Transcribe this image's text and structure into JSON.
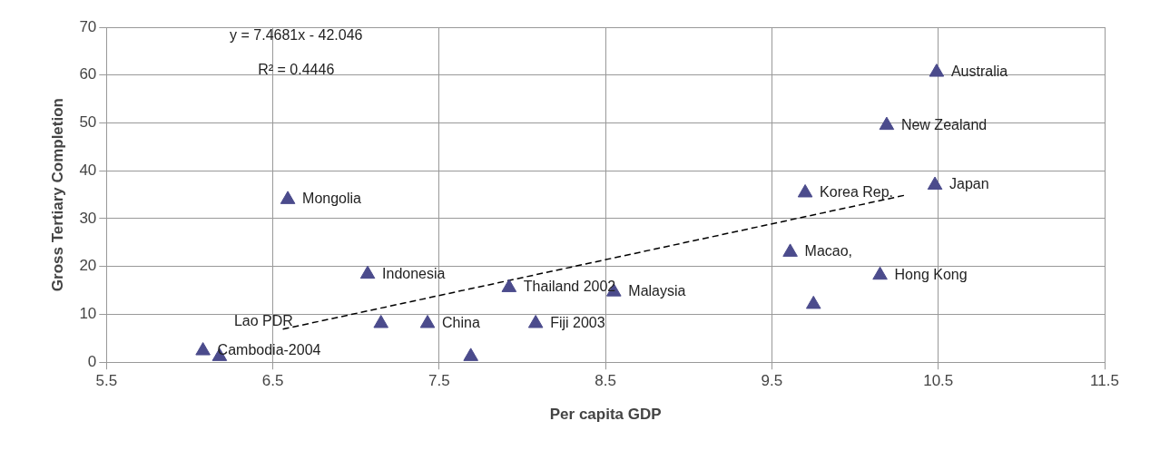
{
  "chart_data": {
    "type": "scatter",
    "xlabel": "Per capita GDP",
    "ylabel": "Gross Tertiary Completion",
    "xlim": [
      5.5,
      11.5
    ],
    "xticks": [
      5.5,
      6.5,
      7.5,
      8.5,
      9.5,
      10.5,
      11.5
    ],
    "ylim": [
      0,
      70
    ],
    "yticks": [
      0,
      10,
      20,
      30,
      40,
      50,
      60,
      70
    ],
    "grid": true,
    "legend": false,
    "marker": "triangle",
    "series": [
      {
        "color": "#4b4b8c",
        "x": [
          6.08,
          6.18,
          6.59,
          7.07,
          7.15,
          7.43,
          7.69,
          7.92,
          8.08,
          8.55,
          9.61,
          9.7,
          9.75,
          10.15,
          10.19,
          10.48,
          10.49
        ],
        "values": [
          2.4,
          1.2,
          34,
          18.4,
          8.1,
          8.1,
          1.2,
          15.6,
          8.1,
          14.7,
          23,
          35.4,
          12.1,
          18.2,
          49.5,
          37,
          60.6
        ]
      },
      {
        "type": "line",
        "color": "#000000",
        "marker": "none",
        "line_style": "dashed",
        "x": [
          6.56,
          10.3
        ],
        "values": [
          6.9,
          34.9
        ]
      }
    ],
    "annotations": [
      "y = 7.4681x - 42.046",
      "R² = 0.4446",
      {
        "text": "Mongolia",
        "x": 6.59,
        "y": 34
      },
      {
        "text": "Australia",
        "x": 10.49,
        "y": 60.6
      },
      {
        "text": "New Zealand",
        "x": 10.19,
        "y": 49.5
      },
      {
        "text": "Japan",
        "x": 10.48,
        "y": 37
      },
      {
        "text": "Korea Rep.",
        "x": 9.7,
        "y": 35.4
      },
      {
        "text": "Macao,",
        "x": 9.61,
        "y": 23
      },
      {
        "text": "Hong Kong",
        "x": 10.15,
        "y": 18.2
      },
      {
        "text": "Thailand 2002",
        "x": 7.92,
        "y": 15.6
      },
      {
        "text": "Malaysia",
        "x": 8.55,
        "y": 14.7
      },
      {
        "text": "Fiji 2003",
        "x": 8.08,
        "y": 8.1
      },
      {
        "text": "China",
        "x": 7.43,
        "y": 8.1
      },
      {
        "text": "Indonesia",
        "x": 7.07,
        "y": 18.4
      },
      {
        "text": "Cambodia-2004",
        "x": 6.08,
        "y": 2.4
      },
      {
        "text": "Lao PDR",
        "x": 6.18,
        "y": 1.2
      }
    ]
  }
}
